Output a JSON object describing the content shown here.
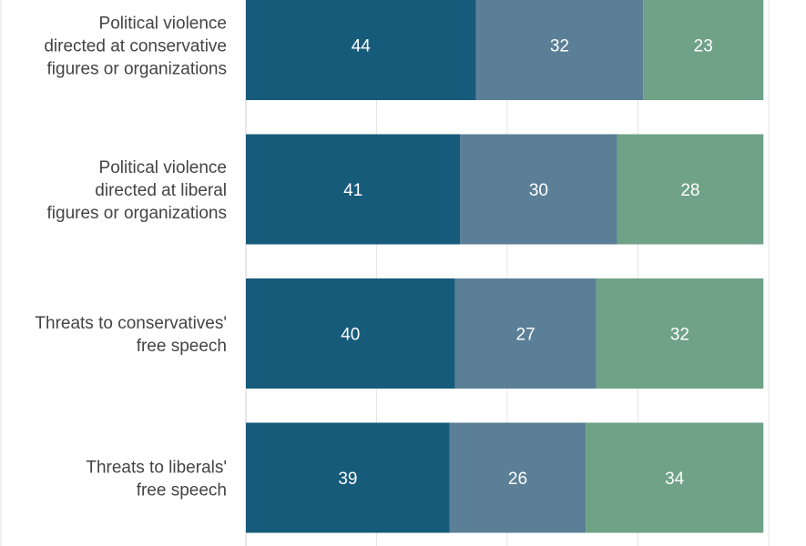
{
  "chart_data": {
    "type": "bar",
    "orientation": "horizontal",
    "stacked": true,
    "categories": [
      [
        "Political violence",
        "directed at conservative",
        "figures or organizations"
      ],
      [
        "Political violence",
        "directed at liberal",
        "figures or organizations"
      ],
      [
        "Threats to conservatives'",
        "free speech"
      ],
      [
        "Threats to liberals'",
        "free speech"
      ]
    ],
    "series": [
      {
        "values": [
          44,
          41,
          40,
          39
        ],
        "color": "#175b7b"
      },
      {
        "values": [
          32,
          30,
          27,
          26
        ],
        "color": "#5b7f96"
      },
      {
        "values": [
          23,
          28,
          32,
          34
        ],
        "color": "#6fa286"
      }
    ],
    "xlim": [
      0,
      100
    ],
    "gridlines": [
      0,
      25,
      50,
      75,
      100
    ],
    "grid": true,
    "data_labels": true
  }
}
